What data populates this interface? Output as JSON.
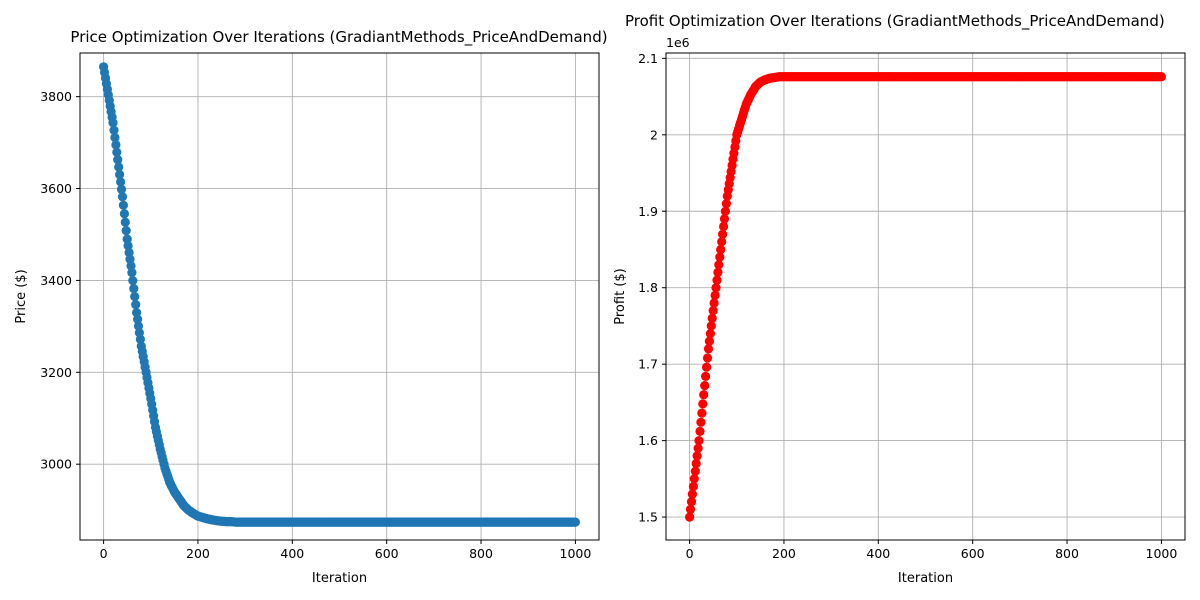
{
  "chart_data": [
    {
      "type": "scatter",
      "title": "Price Optimization Over Iterations (GradiantMethods_PriceAndDemand)",
      "xlabel": "Iteration",
      "ylabel": "Price ($)",
      "color": "#1f77b4",
      "grid": true,
      "xlim": [
        -50,
        1050
      ],
      "ylim": [
        2835,
        3895
      ],
      "xticks": [
        0,
        200,
        400,
        600,
        800,
        1000
      ],
      "yticks": [
        3000,
        3200,
        3400,
        3600,
        3800
      ],
      "ytick_offset": "",
      "x": [
        0,
        10,
        20,
        30,
        40,
        50,
        60,
        70,
        80,
        90,
        100,
        110,
        120,
        130,
        140,
        150,
        160,
        170,
        180,
        190,
        200,
        210,
        220,
        230,
        240,
        250,
        260,
        270,
        280,
        300,
        400,
        500,
        600,
        700,
        800,
        900,
        1000
      ],
      "y": [
        3865,
        3804,
        3743,
        3663,
        3582,
        3490,
        3417,
        3330,
        3257,
        3200,
        3143,
        3080,
        3033,
        2992,
        2961,
        2940,
        2925,
        2910,
        2900,
        2893,
        2887,
        2884,
        2881,
        2879,
        2877,
        2876,
        2875,
        2875,
        2874,
        2874,
        2874,
        2874,
        2874,
        2874,
        2874,
        2874,
        2874
      ]
    },
    {
      "type": "scatter",
      "title": "Profit Optimization Over Iterations (GradiantMethods_PriceAndDemand)",
      "xlabel": "Iteration",
      "ylabel": "Profit ($)",
      "color": "#ff0000",
      "grid": true,
      "xlim": [
        -50,
        1050
      ],
      "ylim": [
        1.47,
        2.107
      ],
      "xticks": [
        0,
        200,
        400,
        600,
        800,
        1000
      ],
      "yticks": [
        1.5,
        1.6,
        1.7,
        1.8,
        1.9,
        2.0,
        2.1
      ],
      "ytick_offset": "1e6",
      "x": [
        0,
        10,
        20,
        30,
        40,
        50,
        60,
        70,
        80,
        90,
        100,
        110,
        120,
        130,
        140,
        150,
        160,
        170,
        180,
        190,
        200,
        220,
        250,
        300,
        400,
        500,
        600,
        700,
        800,
        900,
        1000
      ],
      "y": [
        1.5,
        1.55,
        1.6,
        1.66,
        1.72,
        1.77,
        1.82,
        1.87,
        1.92,
        1.96,
        2.0,
        2.02,
        2.04,
        2.053,
        2.063,
        2.069,
        2.072,
        2.074,
        2.075,
        2.076,
        2.076,
        2.076,
        2.076,
        2.076,
        2.076,
        2.076,
        2.076,
        2.076,
        2.076,
        2.076,
        2.076
      ]
    }
  ]
}
